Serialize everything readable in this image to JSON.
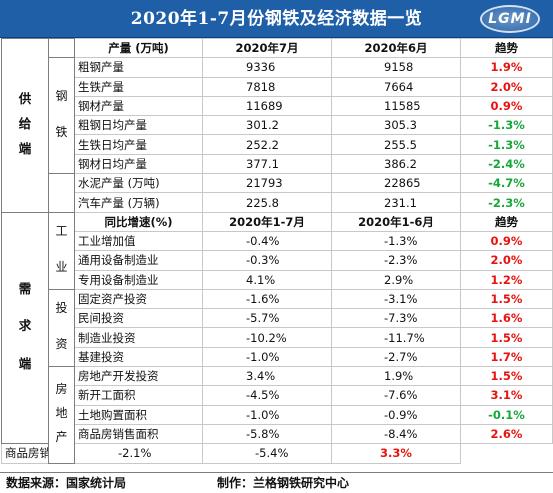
{
  "title": "2020年1-7月份钢铁及经济数据一览",
  "logo_text": "LGMI",
  "colors": {
    "title_bg": "#1f5fa8",
    "up": "#e8130f",
    "down": "#16a73a"
  },
  "categories": {
    "supply": [
      "供",
      "给",
      "端"
    ],
    "demand": [
      "需",
      "求",
      "端"
    ]
  },
  "subgroups": {
    "steel": [
      "钢",
      "铁"
    ],
    "industry": [
      "工",
      "业"
    ],
    "investment": [
      "投",
      "资"
    ],
    "realestate": [
      "房",
      "地",
      "产"
    ]
  },
  "supply_header": {
    "label": "产量 (万吨)",
    "col1": "2020年7月",
    "col2": "2020年6月",
    "trend": "趋势"
  },
  "industry_header": {
    "label": "同比增速(%)",
    "col1": "2020年1-7月",
    "col2": "2020年1-6月",
    "trend": "趋势"
  },
  "rows": [
    {
      "label": "粗钢产量",
      "v1": "9336",
      "v2": "9158",
      "trend": "1.9%",
      "dir": "up"
    },
    {
      "label": "生铁产量",
      "v1": "7818",
      "v2": "7664",
      "trend": "2.0%",
      "dir": "up"
    },
    {
      "label": "钢材产量",
      "v1": "11689",
      "v2": "11585",
      "trend": "0.9%",
      "dir": "up"
    },
    {
      "label": "粗钢日均产量",
      "v1": "301.2",
      "v2": "305.3",
      "trend": "-1.3%",
      "dir": "down"
    },
    {
      "label": "生铁日均产量",
      "v1": "252.2",
      "v2": "255.5",
      "trend": "-1.3%",
      "dir": "down"
    },
    {
      "label": "钢材日均产量",
      "v1": "377.1",
      "v2": "386.2",
      "trend": "-2.4%",
      "dir": "down"
    },
    {
      "label": "水泥产量 (万吨)",
      "v1": "21793",
      "v2": "22865",
      "trend": "-4.7%",
      "dir": "down"
    },
    {
      "label": "汽车产量 (万辆)",
      "v1": "225.8",
      "v2": "231.1",
      "trend": "-2.3%",
      "dir": "down"
    },
    {
      "label": "工业增加值",
      "v1": "-0.4%",
      "v2": "-1.3%",
      "trend": "0.9%",
      "dir": "up"
    },
    {
      "label": "通用设备制造业",
      "v1": "-0.3%",
      "v2": "-2.3%",
      "trend": "2.0%",
      "dir": "up"
    },
    {
      "label": "专用设备制造业",
      "v1": "4.1%",
      "v2": "2.9%",
      "trend": "1.2%",
      "dir": "up"
    },
    {
      "label": "固定资产投资",
      "v1": "-1.6%",
      "v2": "-3.1%",
      "trend": "1.5%",
      "dir": "up"
    },
    {
      "label": "民间投资",
      "v1": "-5.7%",
      "v2": "-7.3%",
      "trend": "1.6%",
      "dir": "up"
    },
    {
      "label": "制造业投资",
      "v1": "-10.2%",
      "v2": "-11.7%",
      "trend": "1.5%",
      "dir": "up"
    },
    {
      "label": "基建投资",
      "v1": "-1.0%",
      "v2": "-2.7%",
      "trend": "1.7%",
      "dir": "up"
    },
    {
      "label": "房地产开发投资",
      "v1": "3.4%",
      "v2": "1.9%",
      "trend": "1.5%",
      "dir": "up"
    },
    {
      "label": "新开工面积",
      "v1": "-4.5%",
      "v2": "-7.6%",
      "trend": "3.1%",
      "dir": "up"
    },
    {
      "label": "土地购置面积",
      "v1": "-1.0%",
      "v2": "-0.9%",
      "trend": "-0.1%",
      "dir": "down"
    },
    {
      "label": "商品房销售面积",
      "v1": "-5.8%",
      "v2": "-8.4%",
      "trend": "2.6%",
      "dir": "up"
    },
    {
      "label": "商品房销售金额",
      "v1": "-2.1%",
      "v2": "-5.4%",
      "trend": "3.3%",
      "dir": "up"
    }
  ],
  "footer": {
    "source": "数据来源：国家统计局",
    "maker": "制作：兰格钢铁研究中心"
  }
}
